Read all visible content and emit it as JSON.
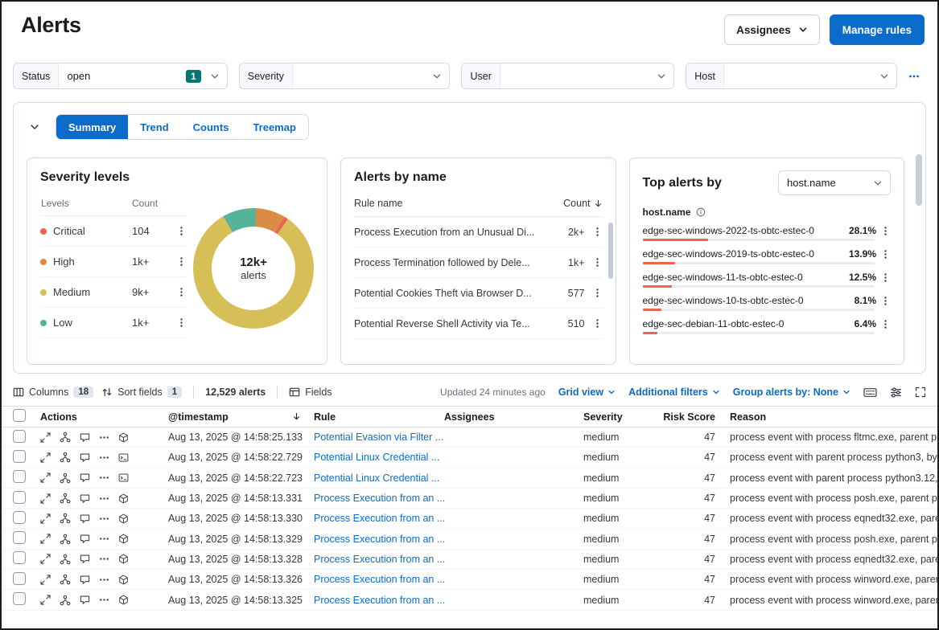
{
  "header": {
    "title": "Alerts",
    "assignees_button": "Assignees",
    "manage_rules_button": "Manage rules"
  },
  "filter_bar": {
    "status": {
      "label": "Status",
      "value": "open",
      "badge": "1"
    },
    "severity": {
      "label": "Severity",
      "value": ""
    },
    "user": {
      "label": "User",
      "value": ""
    },
    "host": {
      "label": "Host",
      "value": ""
    }
  },
  "chart_tabs": [
    {
      "label": "Summary",
      "selected": true
    },
    {
      "label": "Trend",
      "selected": false
    },
    {
      "label": "Counts",
      "selected": false
    },
    {
      "label": "Treemap",
      "selected": false
    }
  ],
  "severity_panel": {
    "title": "Severity levels",
    "columns": {
      "levels": "Levels",
      "count": "Count"
    },
    "rows": [
      {
        "level": "Critical",
        "count": "104",
        "color": "#E7664C"
      },
      {
        "level": "High",
        "count": "1k+",
        "color": "#DA8B45"
      },
      {
        "level": "Medium",
        "count": "9k+",
        "color": "#D6BF57"
      },
      {
        "level": "Low",
        "count": "1k+",
        "color": "#54B399"
      }
    ],
    "donut": {
      "center_value": "12k+",
      "center_label": "alerts",
      "segments": [
        {
          "name": "Low",
          "color": "#54B399",
          "pct": 9
        },
        {
          "name": "High",
          "color": "#DA8B45",
          "pct": 8
        },
        {
          "name": "Critical",
          "color": "#E7664C",
          "pct": 1
        },
        {
          "name": "Medium",
          "color": "#D6BF57",
          "pct": 82
        }
      ]
    }
  },
  "alerts_by_name_panel": {
    "title": "Alerts by name",
    "columns": {
      "rule": "Rule name",
      "count": "Count"
    },
    "rows": [
      {
        "rule": "Process Execution from an Unusual Di...",
        "count": "2k+"
      },
      {
        "rule": "Process Termination followed by Dele...",
        "count": "1k+"
      },
      {
        "rule": "Potential Cookies Theft via Browser D...",
        "count": "577"
      },
      {
        "rule": "Potential Reverse Shell Activity via Te...",
        "count": "510"
      }
    ]
  },
  "top_alerts_panel": {
    "title": "Top alerts by",
    "field_selector": "host.name",
    "list_header": "host.name",
    "bar_color": "#E7664C",
    "rows": [
      {
        "name": "edge-sec-windows-2022-ts-obtc-estec-0",
        "pct": "28.1%",
        "fill": 28.1
      },
      {
        "name": "edge-sec-windows-2019-ts-obtc-estec-0",
        "pct": "13.9%",
        "fill": 13.9
      },
      {
        "name": "edge-sec-windows-11-ts-obtc-estec-0",
        "pct": "12.5%",
        "fill": 12.5
      },
      {
        "name": "edge-sec-windows-10-ts-obtc-estec-0",
        "pct": "8.1%",
        "fill": 8.1
      },
      {
        "name": "edge-sec-debian-11-obtc-estec-0",
        "pct": "6.4%",
        "fill": 6.4
      }
    ]
  },
  "grid_toolbar": {
    "columns_label": "Columns",
    "columns_count": "18",
    "sort_label": "Sort fields",
    "sort_count": "1",
    "alerts_count": "12,529 alerts",
    "fields_label": "Fields",
    "updated_text": "Updated 24 minutes ago",
    "grid_view_label": "Grid view",
    "additional_filters_label": "Additional filters",
    "group_by_label": "Group alerts by: None"
  },
  "grid": {
    "columns": [
      "Actions",
      "@timestamp",
      "Rule",
      "Assignees",
      "Severity",
      "Risk Score",
      "Reason"
    ],
    "rows": [
      {
        "timestamp": "Aug 13, 2025 @ 14:58:25.133",
        "rule": "Potential Evasion via Filter ...",
        "assignees": "",
        "severity": "medium",
        "risk_score": "47",
        "reason": "process event with process fltmc.exe, parent pr",
        "end_icon": "cube-icon"
      },
      {
        "timestamp": "Aug 13, 2025 @ 14:58:22.729",
        "rule": "Potential Linux Credential ...",
        "assignees": "",
        "severity": "medium",
        "risk_score": "47",
        "reason": "process event with parent process python3, by",
        "end_icon": "terminal-icon"
      },
      {
        "timestamp": "Aug 13, 2025 @ 14:58:22.723",
        "rule": "Potential Linux Credential ...",
        "assignees": "",
        "severity": "medium",
        "risk_score": "47",
        "reason": "process event with parent process python3.12,",
        "end_icon": "terminal-icon"
      },
      {
        "timestamp": "Aug 13, 2025 @ 14:58:13.331",
        "rule": "Process Execution from an ...",
        "assignees": "",
        "severity": "medium",
        "risk_score": "47",
        "reason": "process event with process posh.exe, parent pr",
        "end_icon": "cube-icon"
      },
      {
        "timestamp": "Aug 13, 2025 @ 14:58:13.330",
        "rule": "Process Execution from an ...",
        "assignees": "",
        "severity": "medium",
        "risk_score": "47",
        "reason": "process event with process eqnedt32.exe, pare",
        "end_icon": "cube-icon"
      },
      {
        "timestamp": "Aug 13, 2025 @ 14:58:13.329",
        "rule": "Process Execution from an ...",
        "assignees": "",
        "severity": "medium",
        "risk_score": "47",
        "reason": "process event with process posh.exe, parent pr",
        "end_icon": "cube-icon"
      },
      {
        "timestamp": "Aug 13, 2025 @ 14:58:13.328",
        "rule": "Process Execution from an ...",
        "assignees": "",
        "severity": "medium",
        "risk_score": "47",
        "reason": "process event with process eqnedt32.exe, pare",
        "end_icon": "cube-icon"
      },
      {
        "timestamp": "Aug 13, 2025 @ 14:58:13.326",
        "rule": "Process Execution from an ...",
        "assignees": "",
        "severity": "medium",
        "risk_score": "47",
        "reason": "process event with process winword.exe, parer",
        "end_icon": "cube-icon"
      },
      {
        "timestamp": "Aug 13, 2025 @ 14:58:13.325",
        "rule": "Process Execution from an ...",
        "assignees": "",
        "severity": "medium",
        "risk_score": "47",
        "reason": "process event with process winword.exe, parer",
        "end_icon": "cube-icon"
      }
    ]
  }
}
